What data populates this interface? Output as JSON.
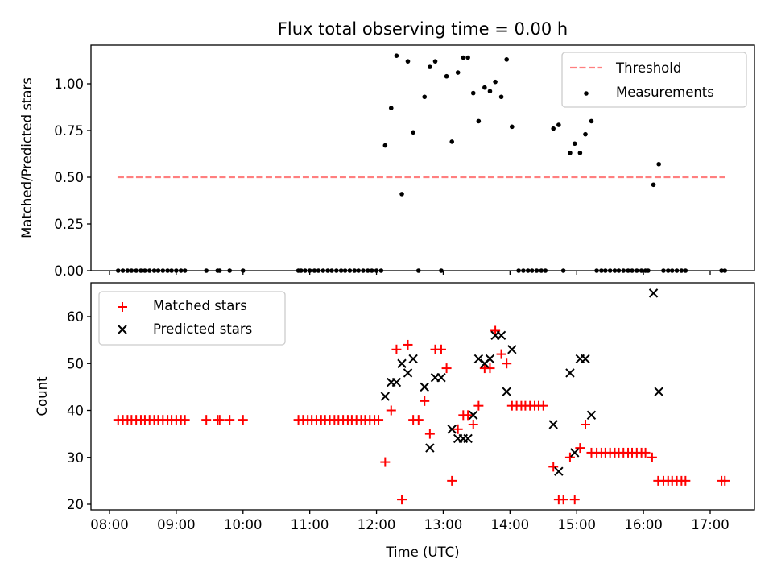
{
  "chart_data": [
    {
      "type": "scatter",
      "title": "Flux total observing time = 0.00 h",
      "xlabel": "",
      "ylabel": "Matched/Predicted stars",
      "xlim": [
        7.72,
        17.67
      ],
      "ylim": [
        0.0,
        1.21
      ],
      "x_unit": "hours UTC",
      "xticks": [
        8,
        9,
        10,
        11,
        12,
        13,
        14,
        15,
        16,
        17
      ],
      "xtick_labels": [
        "",
        "",
        "",
        "",
        "",
        "",
        "",
        "",
        "",
        ""
      ],
      "yticks": [
        0.0,
        0.25,
        0.5,
        0.75,
        1.0
      ],
      "ytick_labels": [
        "0.00",
        "0.25",
        "0.50",
        "0.75",
        "1.00"
      ],
      "legend": {
        "position": "upper right",
        "entries": [
          "Threshold",
          "Measurements"
        ]
      },
      "threshold": {
        "name": "Threshold",
        "value": 0.5,
        "x_start": 8.12,
        "x_end": 17.22,
        "color": "#ff7f7f",
        "style": "dashed"
      },
      "series": [
        {
          "name": "Measurements",
          "color": "#000000",
          "marker": "dot",
          "points": [
            [
              8.13,
              0
            ],
            [
              8.2,
              0
            ],
            [
              8.27,
              0
            ],
            [
              8.33,
              0
            ],
            [
              8.4,
              0
            ],
            [
              8.47,
              0
            ],
            [
              8.53,
              0
            ],
            [
              8.6,
              0
            ],
            [
              8.67,
              0
            ],
            [
              8.73,
              0
            ],
            [
              8.8,
              0
            ],
            [
              8.87,
              0
            ],
            [
              8.93,
              0
            ],
            [
              9.0,
              0
            ],
            [
              9.07,
              0
            ],
            [
              9.13,
              0
            ],
            [
              9.45,
              0
            ],
            [
              9.62,
              0
            ],
            [
              9.65,
              0
            ],
            [
              9.8,
              0
            ],
            [
              10.0,
              0
            ],
            [
              10.83,
              0
            ],
            [
              10.87,
              0
            ],
            [
              10.93,
              0
            ],
            [
              11.0,
              0
            ],
            [
              11.07,
              0
            ],
            [
              11.13,
              0
            ],
            [
              11.2,
              0
            ],
            [
              11.27,
              0
            ],
            [
              11.33,
              0
            ],
            [
              11.4,
              0
            ],
            [
              11.47,
              0
            ],
            [
              11.53,
              0
            ],
            [
              11.6,
              0
            ],
            [
              11.67,
              0
            ],
            [
              11.73,
              0
            ],
            [
              11.8,
              0
            ],
            [
              11.87,
              0
            ],
            [
              11.93,
              0
            ],
            [
              12.0,
              0
            ],
            [
              12.07,
              0
            ],
            [
              12.13,
              0.67
            ],
            [
              12.22,
              0.87
            ],
            [
              12.3,
              1.15
            ],
            [
              12.38,
              0.41
            ],
            [
              12.47,
              1.12
            ],
            [
              12.55,
              0.74
            ],
            [
              12.63,
              0.0
            ],
            [
              12.72,
              0.93
            ],
            [
              12.8,
              1.09
            ],
            [
              12.88,
              1.12
            ],
            [
              12.97,
              0.0
            ],
            [
              13.05,
              1.04
            ],
            [
              13.13,
              0.69
            ],
            [
              13.22,
              1.06
            ],
            [
              13.3,
              1.14
            ],
            [
              13.37,
              1.14
            ],
            [
              13.45,
              0.95
            ],
            [
              13.53,
              0.8
            ],
            [
              13.62,
              0.98
            ],
            [
              13.7,
              0.96
            ],
            [
              13.78,
              1.01
            ],
            [
              13.87,
              0.93
            ],
            [
              13.95,
              1.13
            ],
            [
              14.03,
              0.77
            ],
            [
              14.13,
              0
            ],
            [
              14.2,
              0
            ],
            [
              14.27,
              0
            ],
            [
              14.33,
              0
            ],
            [
              14.4,
              0
            ],
            [
              14.47,
              0
            ],
            [
              14.53,
              0
            ],
            [
              14.65,
              0.76
            ],
            [
              14.73,
              0.78
            ],
            [
              14.8,
              0
            ],
            [
              14.9,
              0.63
            ],
            [
              14.97,
              0.68
            ],
            [
              15.05,
              0.63
            ],
            [
              15.13,
              0.73
            ],
            [
              15.22,
              0.8
            ],
            [
              15.3,
              0
            ],
            [
              15.37,
              0
            ],
            [
              15.43,
              0
            ],
            [
              15.5,
              0
            ],
            [
              15.57,
              0
            ],
            [
              15.63,
              0
            ],
            [
              15.7,
              0
            ],
            [
              15.77,
              0
            ],
            [
              15.83,
              0
            ],
            [
              15.9,
              0
            ],
            [
              15.97,
              0
            ],
            [
              16.03,
              0
            ],
            [
              16.07,
              0
            ],
            [
              16.15,
              0.46
            ],
            [
              16.23,
              0.57
            ],
            [
              16.3,
              0
            ],
            [
              16.37,
              0
            ],
            [
              16.43,
              0
            ],
            [
              16.5,
              0
            ],
            [
              16.57,
              0
            ],
            [
              16.63,
              0
            ],
            [
              17.17,
              0
            ],
            [
              17.22,
              0
            ]
          ]
        }
      ]
    },
    {
      "type": "scatter",
      "title": "",
      "xlabel": "Time (UTC)",
      "ylabel": "Count",
      "xlim": [
        7.72,
        17.67
      ],
      "ylim": [
        18.8,
        66.9
      ],
      "x_unit": "hours UTC",
      "xticks": [
        8,
        9,
        10,
        11,
        12,
        13,
        14,
        15,
        16,
        17
      ],
      "xtick_labels": [
        "08:00",
        "09:00",
        "10:00",
        "11:00",
        "12:00",
        "13:00",
        "14:00",
        "15:00",
        "16:00",
        "17:00"
      ],
      "yticks": [
        20,
        30,
        40,
        50,
        60
      ],
      "ytick_labels": [
        "20",
        "30",
        "40",
        "50",
        "60"
      ],
      "legend": {
        "position": "upper left",
        "entries": [
          "Matched stars",
          "Predicted stars"
        ]
      },
      "series": [
        {
          "name": "Matched stars",
          "color": "#ff0000",
          "marker": "plus",
          "points": [
            [
              8.13,
              38
            ],
            [
              8.2,
              38
            ],
            [
              8.27,
              38
            ],
            [
              8.33,
              38
            ],
            [
              8.4,
              38
            ],
            [
              8.47,
              38
            ],
            [
              8.53,
              38
            ],
            [
              8.6,
              38
            ],
            [
              8.67,
              38
            ],
            [
              8.73,
              38
            ],
            [
              8.8,
              38
            ],
            [
              8.87,
              38
            ],
            [
              8.93,
              38
            ],
            [
              9.0,
              38
            ],
            [
              9.07,
              38
            ],
            [
              9.13,
              38
            ],
            [
              9.45,
              38
            ],
            [
              9.62,
              38
            ],
            [
              9.65,
              38
            ],
            [
              9.8,
              38
            ],
            [
              10.0,
              38
            ],
            [
              10.83,
              38
            ],
            [
              10.9,
              38
            ],
            [
              10.97,
              38
            ],
            [
              11.03,
              38
            ],
            [
              11.1,
              38
            ],
            [
              11.17,
              38
            ],
            [
              11.23,
              38
            ],
            [
              11.3,
              38
            ],
            [
              11.37,
              38
            ],
            [
              11.43,
              38
            ],
            [
              11.5,
              38
            ],
            [
              11.57,
              38
            ],
            [
              11.63,
              38
            ],
            [
              11.7,
              38
            ],
            [
              11.77,
              38
            ],
            [
              11.83,
              38
            ],
            [
              11.9,
              38
            ],
            [
              11.97,
              38
            ],
            [
              12.03,
              38
            ],
            [
              12.13,
              29
            ],
            [
              12.22,
              40
            ],
            [
              12.3,
              53
            ],
            [
              12.38,
              21
            ],
            [
              12.47,
              54
            ],
            [
              12.55,
              38
            ],
            [
              12.63,
              38
            ],
            [
              12.72,
              42
            ],
            [
              12.8,
              35
            ],
            [
              12.88,
              53
            ],
            [
              12.97,
              53
            ],
            [
              13.05,
              49
            ],
            [
              13.13,
              25
            ],
            [
              13.22,
              36
            ],
            [
              13.3,
              39
            ],
            [
              13.37,
              39
            ],
            [
              13.45,
              37
            ],
            [
              13.53,
              41
            ],
            [
              13.62,
              49
            ],
            [
              13.7,
              49
            ],
            [
              13.78,
              57
            ],
            [
              13.87,
              52
            ],
            [
              13.95,
              50
            ],
            [
              14.03,
              41
            ],
            [
              14.1,
              41
            ],
            [
              14.17,
              41
            ],
            [
              14.23,
              41
            ],
            [
              14.3,
              41
            ],
            [
              14.37,
              41
            ],
            [
              14.43,
              41
            ],
            [
              14.5,
              41
            ],
            [
              14.65,
              28
            ],
            [
              14.73,
              21
            ],
            [
              14.8,
              21
            ],
            [
              14.9,
              30
            ],
            [
              14.97,
              21
            ],
            [
              15.05,
              32
            ],
            [
              15.13,
              37
            ],
            [
              15.22,
              31
            ],
            [
              15.3,
              31
            ],
            [
              15.37,
              31
            ],
            [
              15.43,
              31
            ],
            [
              15.5,
              31
            ],
            [
              15.57,
              31
            ],
            [
              15.63,
              31
            ],
            [
              15.7,
              31
            ],
            [
              15.77,
              31
            ],
            [
              15.83,
              31
            ],
            [
              15.9,
              31
            ],
            [
              15.97,
              31
            ],
            [
              16.03,
              31
            ],
            [
              16.13,
              30
            ],
            [
              16.22,
              25
            ],
            [
              16.3,
              25
            ],
            [
              16.37,
              25
            ],
            [
              16.43,
              25
            ],
            [
              16.5,
              25
            ],
            [
              16.57,
              25
            ],
            [
              16.63,
              25
            ],
            [
              17.17,
              25
            ],
            [
              17.22,
              25
            ]
          ]
        },
        {
          "name": "Predicted stars",
          "color": "#000000",
          "marker": "x",
          "points": [
            [
              12.13,
              43
            ],
            [
              12.22,
              46
            ],
            [
              12.3,
              46
            ],
            [
              12.38,
              50
            ],
            [
              12.47,
              48
            ],
            [
              12.55,
              51
            ],
            [
              12.72,
              45
            ],
            [
              12.8,
              32
            ],
            [
              12.88,
              47
            ],
            [
              12.97,
              47
            ],
            [
              13.13,
              36
            ],
            [
              13.22,
              34
            ],
            [
              13.3,
              34
            ],
            [
              13.37,
              34
            ],
            [
              13.45,
              39
            ],
            [
              13.53,
              51
            ],
            [
              13.62,
              50
            ],
            [
              13.7,
              51
            ],
            [
              13.78,
              56
            ],
            [
              13.87,
              56
            ],
            [
              13.95,
              44
            ],
            [
              14.03,
              53
            ],
            [
              14.65,
              37
            ],
            [
              14.73,
              27
            ],
            [
              14.9,
              48
            ],
            [
              14.97,
              31
            ],
            [
              15.05,
              51
            ],
            [
              15.13,
              51
            ],
            [
              15.22,
              39
            ],
            [
              16.15,
              65
            ],
            [
              16.23,
              44
            ]
          ]
        }
      ]
    }
  ]
}
